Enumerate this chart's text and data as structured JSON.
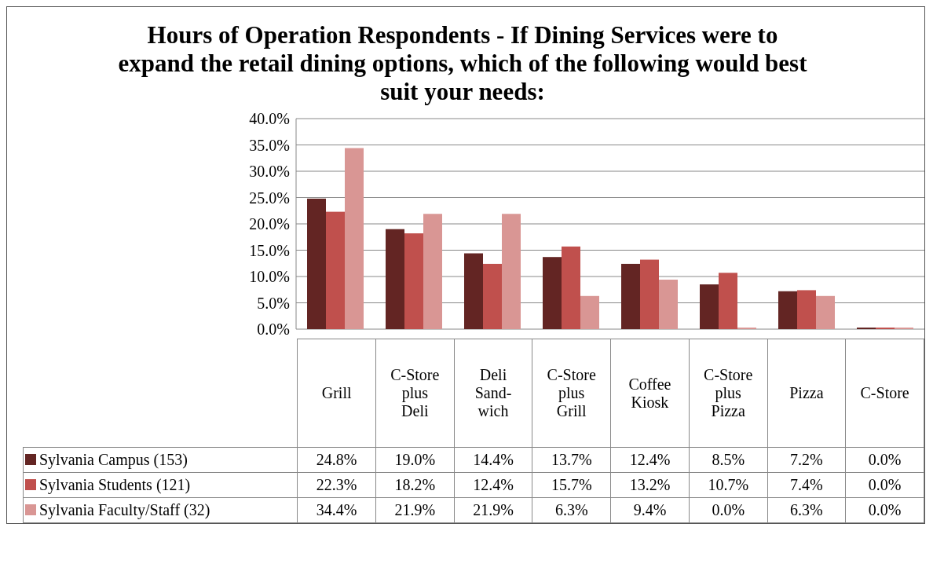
{
  "chart_data": {
    "type": "bar",
    "title": "Hours of Operation Respondents - If Dining Services were to expand the retail dining options, which of the following would best suit your needs:",
    "categories": [
      "Grill",
      "C-Store plus Deli",
      "Deli Sand-wich",
      "C-Store plus Grill",
      "Coffee Kiosk",
      "C-Store plus Pizza",
      "Pizza",
      "C-Store"
    ],
    "series": [
      {
        "name": "Sylvania Campus (153)",
        "color": "#632523",
        "values": [
          24.8,
          19.0,
          14.4,
          13.7,
          12.4,
          8.5,
          7.2,
          0.0
        ],
        "value_labels": [
          "24.8%",
          "19.0%",
          "14.4%",
          "13.7%",
          "12.4%",
          "8.5%",
          "7.2%",
          "0.0%"
        ]
      },
      {
        "name": "Sylvania Students (121)",
        "color": "#c0504d",
        "values": [
          22.3,
          18.2,
          12.4,
          15.7,
          13.2,
          10.7,
          7.4,
          0.0
        ],
        "value_labels": [
          "22.3%",
          "18.2%",
          "12.4%",
          "15.7%",
          "13.2%",
          "10.7%",
          "7.4%",
          "0.0%"
        ]
      },
      {
        "name": "Sylvania Faculty/Staff (32)",
        "color": "#d99694",
        "values": [
          34.4,
          21.9,
          21.9,
          6.3,
          9.4,
          0.0,
          6.3,
          0.0
        ],
        "value_labels": [
          "34.4%",
          "21.9%",
          "21.9%",
          "6.3%",
          "9.4%",
          "0.0%",
          "6.3%",
          "0.0%"
        ]
      }
    ],
    "ylim": [
      0,
      40
    ],
    "yticks": [
      {
        "value": 0,
        "label": "0.0%"
      },
      {
        "value": 5,
        "label": "5.0%"
      },
      {
        "value": 10,
        "label": "10.0%"
      },
      {
        "value": 15,
        "label": "15.0%"
      },
      {
        "value": 20,
        "label": "20.0%"
      },
      {
        "value": 25,
        "label": "25.0%"
      },
      {
        "value": 30,
        "label": "30.0%"
      },
      {
        "value": 35,
        "label": "35.0%"
      },
      {
        "value": 40,
        "label": "40.0%"
      }
    ],
    "grid": "y",
    "legend": "bottom"
  }
}
